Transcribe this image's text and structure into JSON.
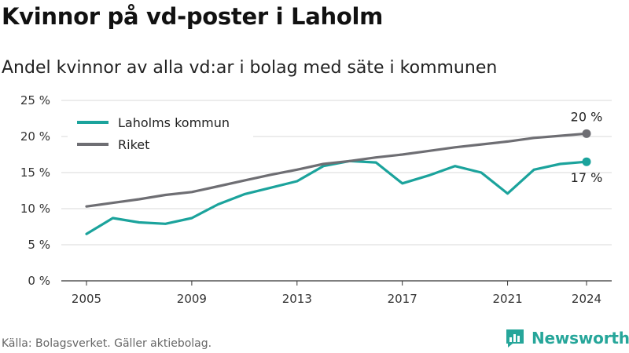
{
  "title": "Kvinnor på vd-poster i Laholm",
  "subtitle": "Andel kvinnor av alla vd:ar i bolag med säte i kommunen",
  "source": "Källa: Bolagsverket. Gäller aktiebolag.",
  "brand": "Newsworthy",
  "colors": {
    "laholm": "#1ba39c",
    "riket": "#6e6e73",
    "grid": "#d9d9d9",
    "axis": "#333333",
    "brand": "#26a69a"
  },
  "chart_data": {
    "type": "line",
    "x": [
      2005,
      2006,
      2007,
      2008,
      2009,
      2010,
      2011,
      2012,
      2013,
      2014,
      2015,
      2016,
      2017,
      2018,
      2019,
      2020,
      2021,
      2022,
      2023,
      2024
    ],
    "series": [
      {
        "name": "Laholms kommun",
        "color": "#1ba39c",
        "values": [
          6.5,
          8.7,
          8.1,
          7.9,
          8.7,
          10.6,
          12.0,
          12.9,
          13.8,
          15.9,
          16.6,
          16.4,
          13.5,
          14.6,
          15.9,
          15.0,
          12.1,
          15.4,
          16.2,
          16.5
        ],
        "end_label": "17 %"
      },
      {
        "name": "Riket",
        "color": "#6e6e73",
        "values": [
          10.3,
          10.8,
          11.3,
          11.9,
          12.3,
          13.1,
          13.9,
          14.7,
          15.4,
          16.2,
          16.6,
          17.1,
          17.5,
          18.0,
          18.5,
          18.9,
          19.3,
          19.8,
          20.1,
          20.4
        ],
        "end_label": "20 %"
      }
    ],
    "xticks": [
      2005,
      2009,
      2013,
      2017,
      2021,
      2024
    ],
    "yticks": [
      0,
      5,
      10,
      15,
      20,
      25
    ],
    "ytick_labels": [
      "0 %",
      "5 %",
      "10 %",
      "15 %",
      "20 %",
      "25 %"
    ],
    "xlim": [
      2005,
      2024
    ],
    "ylim": [
      0,
      25
    ],
    "grid": true,
    "legend_position": "top-left"
  }
}
